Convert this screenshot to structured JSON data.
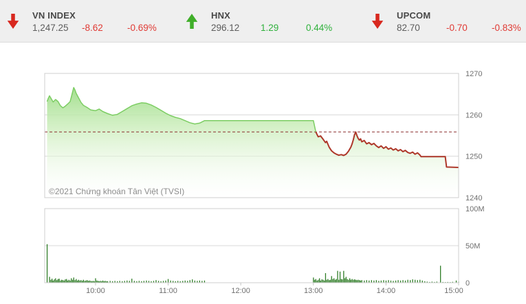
{
  "header": {
    "indices": [
      {
        "name": "VN INDEX",
        "value": "1,247.25",
        "change": "-8.62",
        "change_pct": "-0.69%",
        "direction": "down"
      },
      {
        "name": "HNX",
        "value": "296.12",
        "change": "1.29",
        "change_pct": "0.44%",
        "direction": "up"
      },
      {
        "name": "UPCOM",
        "value": "82.70",
        "change": "-0.70",
        "change_pct": "-0.83%",
        "direction": "down"
      }
    ]
  },
  "watermark": "©2021 Chứng khoán Tân Việt (TVSI)",
  "colors": {
    "arrow_up": "#3fae29",
    "arrow_down": "#d8281f",
    "up_text": "#2fb13c",
    "down_text": "#e03a34",
    "line_up": "#7ccd63",
    "line_down": "#ae372a",
    "area_top": "#8bd671",
    "area_mid": "#cdeebd",
    "volume_bar": "#2f7d27",
    "reference": "#8b2e2e",
    "grid": "#d9d9d9",
    "border": "#cfcfcf",
    "axis_text": "#6f6f6f"
  },
  "chart_data": [
    {
      "type": "area",
      "title": "VN-Index intraday price",
      "x_unit": "minutes since 09:00",
      "x_range": [
        18,
        360
      ],
      "ylim": [
        1240,
        1270
      ],
      "grid": true,
      "legend_position": "none",
      "y_axis_side": "right",
      "y_ticks": [
        {
          "v": 1270,
          "label": "1270"
        },
        {
          "v": 1260,
          "label": "1260"
        },
        {
          "v": 1250,
          "label": "1250"
        },
        {
          "v": 1240,
          "label": "1240"
        }
      ],
      "x_ticks": [
        {
          "t": 60,
          "label": "10:00"
        },
        {
          "t": 120,
          "label": "11:00"
        },
        {
          "t": 180,
          "label": "12:00"
        },
        {
          "t": 240,
          "label": "13:00"
        },
        {
          "t": 300,
          "label": "14:00"
        },
        {
          "t": 360,
          "label": "15:00"
        }
      ],
      "reference_value": 1255.87,
      "reference_style": "dashed",
      "series": [
        {
          "name": "VN-Index",
          "segments": [
            {
              "color_key": "line_up",
              "points": [
                [
                  20,
                  1263.2
                ],
                [
                  21,
                  1264.0
                ],
                [
                  22,
                  1264.6
                ],
                [
                  23,
                  1264.1
                ],
                [
                  25,
                  1263.1
                ],
                [
                  27,
                  1263.7
                ],
                [
                  29,
                  1263.2
                ],
                [
                  31,
                  1262.2
                ],
                [
                  33,
                  1261.7
                ],
                [
                  35,
                  1262.1
                ],
                [
                  37,
                  1262.6
                ],
                [
                  39,
                  1263.2
                ],
                [
                  40,
                  1264.3
                ],
                [
                  42,
                  1266.6
                ],
                [
                  43,
                  1266.0
                ],
                [
                  44,
                  1265.2
                ],
                [
                  46,
                  1264.1
                ],
                [
                  48,
                  1263.0
                ],
                [
                  50,
                  1262.3
                ],
                [
                  53,
                  1261.8
                ],
                [
                  56,
                  1261.2
                ],
                [
                  60,
                  1261.0
                ],
                [
                  63,
                  1261.4
                ],
                [
                  66,
                  1260.8
                ],
                [
                  70,
                  1260.3
                ],
                [
                  74,
                  1259.9
                ],
                [
                  78,
                  1260.1
                ],
                [
                  82,
                  1260.8
                ],
                [
                  86,
                  1261.5
                ],
                [
                  90,
                  1262.2
                ],
                [
                  94,
                  1262.6
                ],
                [
                  98,
                  1262.9
                ],
                [
                  102,
                  1262.8
                ],
                [
                  106,
                  1262.4
                ],
                [
                  110,
                  1261.8
                ],
                [
                  114,
                  1261.1
                ],
                [
                  118,
                  1260.4
                ],
                [
                  122,
                  1259.8
                ],
                [
                  126,
                  1259.4
                ],
                [
                  130,
                  1259.1
                ],
                [
                  134,
                  1258.6
                ],
                [
                  138,
                  1258.1
                ],
                [
                  142,
                  1257.8
                ],
                [
                  146,
                  1258.0
                ],
                [
                  150,
                  1258.6
                ],
                [
                  240,
                  1258.6
                ],
                [
                  242,
                  1255.87
                ]
              ]
            },
            {
              "color_key": "line_down",
              "points": [
                [
                  242,
                  1255.87
                ],
                [
                  244,
                  1254.7
                ],
                [
                  246,
                  1254.9
                ],
                [
                  248,
                  1254.1
                ],
                [
                  250,
                  1253.3
                ],
                [
                  251,
                  1253.6
                ],
                [
                  253,
                  1252.2
                ],
                [
                  255,
                  1251.3
                ],
                [
                  257,
                  1250.8
                ],
                [
                  259,
                  1250.5
                ],
                [
                  261,
                  1250.25
                ],
                [
                  263,
                  1250.4
                ],
                [
                  265,
                  1250.2
                ],
                [
                  267,
                  1250.5
                ],
                [
                  269,
                  1251.2
                ],
                [
                  271,
                  1252.2
                ],
                [
                  272,
                  1253.0
                ],
                [
                  273,
                  1254.0
                ],
                [
                  274,
                  1255.2
                ],
                [
                  275,
                  1255.85
                ],
                [
                  276,
                  1255.0
                ],
                [
                  277,
                  1254.3
                ],
                [
                  278,
                  1253.9
                ],
                [
                  279,
                  1254.2
                ],
                [
                  280,
                  1253.5
                ],
                [
                  282,
                  1253.8
                ],
                [
                  284,
                  1253.0
                ],
                [
                  286,
                  1253.3
                ],
                [
                  288,
                  1252.8
                ],
                [
                  290,
                  1253.1
                ],
                [
                  292,
                  1252.5
                ],
                [
                  294,
                  1252.1
                ],
                [
                  296,
                  1252.5
                ],
                [
                  298,
                  1251.9
                ],
                [
                  300,
                  1252.3
                ],
                [
                  302,
                  1251.7
                ],
                [
                  304,
                  1252.0
                ],
                [
                  306,
                  1251.5
                ],
                [
                  308,
                  1251.8
                ],
                [
                  310,
                  1251.3
                ],
                [
                  312,
                  1251.6
                ],
                [
                  314,
                  1251.1
                ],
                [
                  316,
                  1251.4
                ],
                [
                  318,
                  1250.9
                ],
                [
                  320,
                  1250.7
                ],
                [
                  322,
                  1251.0
                ],
                [
                  324,
                  1250.5
                ],
                [
                  326,
                  1250.8
                ],
                [
                  328,
                  1250.3
                ],
                [
                  329,
                  1249.9
                ],
                [
                  349,
                  1249.9
                ],
                [
                  350,
                  1247.4
                ],
                [
                  360,
                  1247.3
                ]
              ]
            }
          ]
        }
      ]
    },
    {
      "type": "bar",
      "title": "Trading volume",
      "x_unit": "minutes since 09:00",
      "x_range": [
        18,
        360
      ],
      "ylim": [
        0,
        100
      ],
      "grid": true,
      "y_axis_side": "right",
      "y_ticks": [
        {
          "v": 100,
          "label": "100M"
        },
        {
          "v": 50,
          "label": "50M"
        },
        {
          "v": 0,
          "label": "0"
        }
      ],
      "bars": [
        [
          20,
          52
        ],
        [
          22,
          8
        ],
        [
          23,
          4
        ],
        [
          24,
          5.5
        ],
        [
          25,
          3
        ],
        [
          26,
          4.5
        ],
        [
          27,
          6
        ],
        [
          28,
          3.5
        ],
        [
          29,
          5
        ],
        [
          30,
          5.5
        ],
        [
          31,
          3
        ],
        [
          32,
          4
        ],
        [
          33,
          3.5
        ],
        [
          34,
          3
        ],
        [
          35,
          4.5
        ],
        [
          36,
          5
        ],
        [
          37,
          3
        ],
        [
          38,
          4
        ],
        [
          39,
          3
        ],
        [
          40,
          6
        ],
        [
          41,
          4
        ],
        [
          42,
          7
        ],
        [
          43,
          3.5
        ],
        [
          44,
          5
        ],
        [
          45,
          3
        ],
        [
          46,
          4
        ],
        [
          47,
          3
        ],
        [
          48,
          3.5
        ],
        [
          49,
          2.5
        ],
        [
          50,
          4
        ],
        [
          51,
          2.5
        ],
        [
          52,
          3
        ],
        [
          53,
          3.5
        ],
        [
          54,
          2.5
        ],
        [
          55,
          3
        ],
        [
          56,
          2.5
        ],
        [
          57,
          2
        ],
        [
          58,
          2.5
        ],
        [
          59,
          2
        ],
        [
          60,
          6
        ],
        [
          61,
          3
        ],
        [
          62,
          2.5
        ],
        [
          63,
          2
        ],
        [
          64,
          2.5
        ],
        [
          65,
          2
        ],
        [
          66,
          3
        ],
        [
          67,
          2
        ],
        [
          68,
          2.5
        ],
        [
          69,
          2
        ],
        [
          70,
          2
        ],
        [
          72,
          2.5
        ],
        [
          74,
          2
        ],
        [
          76,
          2.5
        ],
        [
          78,
          2
        ],
        [
          80,
          2.5
        ],
        [
          82,
          2
        ],
        [
          84,
          2.5
        ],
        [
          86,
          3
        ],
        [
          88,
          2.5
        ],
        [
          90,
          5.5
        ],
        [
          92,
          2.5
        ],
        [
          94,
          2
        ],
        [
          96,
          2.5
        ],
        [
          98,
          2
        ],
        [
          100,
          2.5
        ],
        [
          102,
          3
        ],
        [
          104,
          2.5
        ],
        [
          106,
          2
        ],
        [
          108,
          2.5
        ],
        [
          110,
          3.5
        ],
        [
          112,
          2.5
        ],
        [
          114,
          2
        ],
        [
          116,
          2.5
        ],
        [
          118,
          3
        ],
        [
          120,
          5
        ],
        [
          122,
          3
        ],
        [
          124,
          2.5
        ],
        [
          126,
          2
        ],
        [
          128,
          2.5
        ],
        [
          130,
          2
        ],
        [
          132,
          2.5
        ],
        [
          134,
          3
        ],
        [
          136,
          2.5
        ],
        [
          138,
          3.5
        ],
        [
          140,
          4.5
        ],
        [
          142,
          3
        ],
        [
          144,
          2.5
        ],
        [
          146,
          3
        ],
        [
          148,
          2.5
        ],
        [
          150,
          3
        ],
        [
          240,
          7
        ],
        [
          241,
          4
        ],
        [
          242,
          5
        ],
        [
          243,
          3
        ],
        [
          244,
          4
        ],
        [
          245,
          6
        ],
        [
          246,
          3
        ],
        [
          247,
          4.5
        ],
        [
          248,
          4
        ],
        [
          249,
          3
        ],
        [
          250,
          13
        ],
        [
          251,
          4
        ],
        [
          252,
          5
        ],
        [
          253,
          3.5
        ],
        [
          254,
          4
        ],
        [
          255,
          9
        ],
        [
          256,
          5
        ],
        [
          257,
          6
        ],
        [
          258,
          4
        ],
        [
          259,
          5
        ],
        [
          260,
          16
        ],
        [
          261,
          4
        ],
        [
          262,
          15
        ],
        [
          263,
          5
        ],
        [
          264,
          4.5
        ],
        [
          265,
          16
        ],
        [
          266,
          6
        ],
        [
          267,
          8
        ],
        [
          268,
          5
        ],
        [
          269,
          4
        ],
        [
          270,
          6
        ],
        [
          271,
          4
        ],
        [
          272,
          5
        ],
        [
          273,
          4
        ],
        [
          274,
          4.5
        ],
        [
          275,
          4
        ],
        [
          276,
          3.5
        ],
        [
          277,
          4
        ],
        [
          278,
          3.5
        ],
        [
          279,
          3
        ],
        [
          280,
          3.5
        ],
        [
          282,
          3
        ],
        [
          284,
          3.5
        ],
        [
          286,
          3
        ],
        [
          288,
          3.5
        ],
        [
          290,
          3
        ],
        [
          292,
          3.5
        ],
        [
          294,
          2.5
        ],
        [
          296,
          3
        ],
        [
          298,
          3.5
        ],
        [
          300,
          3
        ],
        [
          302,
          3.5
        ],
        [
          304,
          3
        ],
        [
          306,
          2.5
        ],
        [
          308,
          3
        ],
        [
          310,
          3.5
        ],
        [
          312,
          3
        ],
        [
          314,
          3.5
        ],
        [
          316,
          3
        ],
        [
          318,
          4
        ],
        [
          320,
          3.5
        ],
        [
          322,
          4.5
        ],
        [
          324,
          4
        ],
        [
          326,
          3.5
        ],
        [
          328,
          4
        ],
        [
          330,
          3
        ],
        [
          332,
          2
        ],
        [
          334,
          1.5
        ],
        [
          336,
          1
        ],
        [
          338,
          1.5
        ],
        [
          340,
          1
        ],
        [
          342,
          1.5
        ],
        [
          345,
          23
        ],
        [
          347,
          1
        ],
        [
          349,
          0.8
        ],
        [
          351,
          1
        ],
        [
          353,
          0.8
        ],
        [
          355,
          1.2
        ],
        [
          358,
          3
        ],
        [
          360,
          1.5
        ]
      ]
    }
  ]
}
